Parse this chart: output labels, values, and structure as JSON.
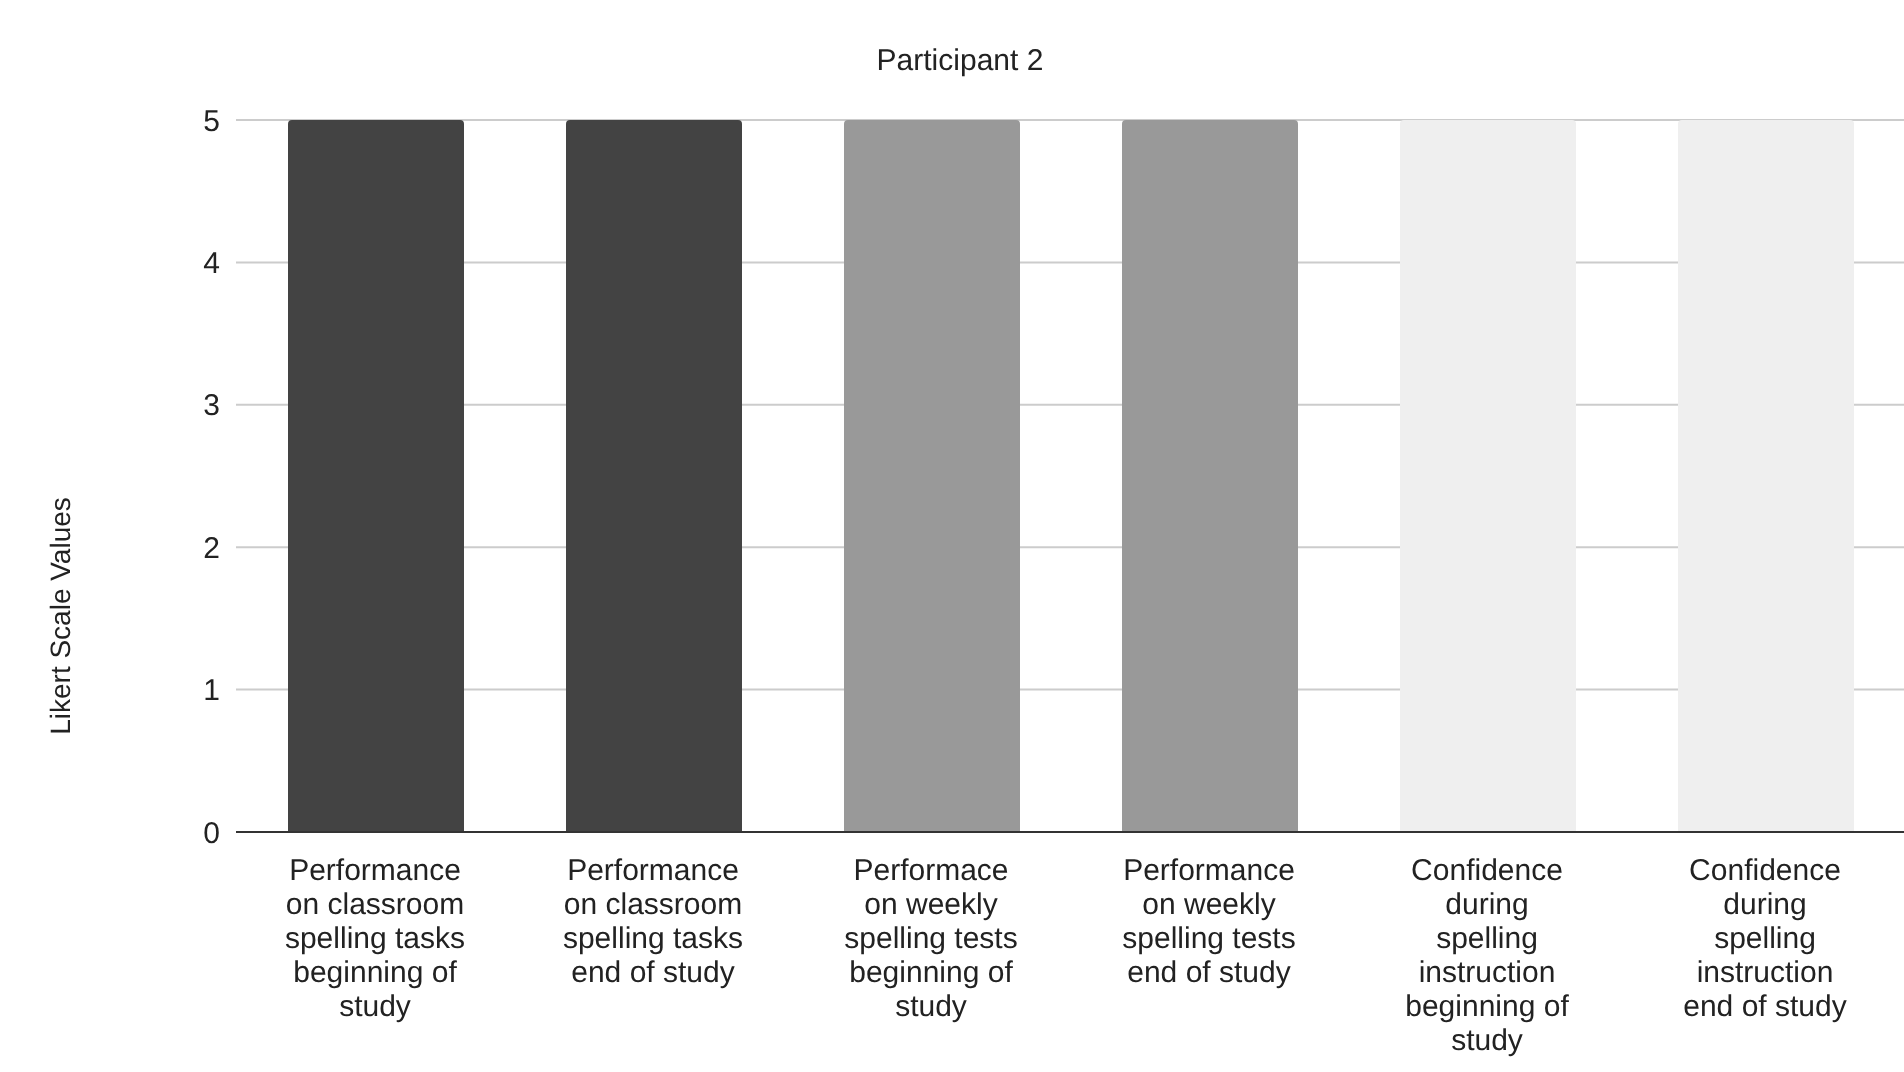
{
  "chart_data": {
    "type": "bar",
    "title": "Participant 2",
    "ylabel": "Likert Scale Values",
    "categories": [
      "Performance on classroom spelling tasks beginning of study",
      "Performance on classroom spelling tasks end of study",
      "Performace on weekly spelling tests beginning of study",
      "Performance on weekly spelling tests end of study",
      "Confidence during spelling instruction beginning of study",
      "Confidence during spelling instruction end of study"
    ],
    "values": [
      5,
      5,
      5,
      5,
      5,
      5
    ],
    "colors": [
      "#434343",
      "#434343",
      "#999999",
      "#999999",
      "#efefef",
      "#efefef"
    ],
    "ylim": [
      0,
      5
    ],
    "yticks": [
      0,
      1,
      2,
      3,
      4,
      5
    ],
    "grid": "y"
  }
}
